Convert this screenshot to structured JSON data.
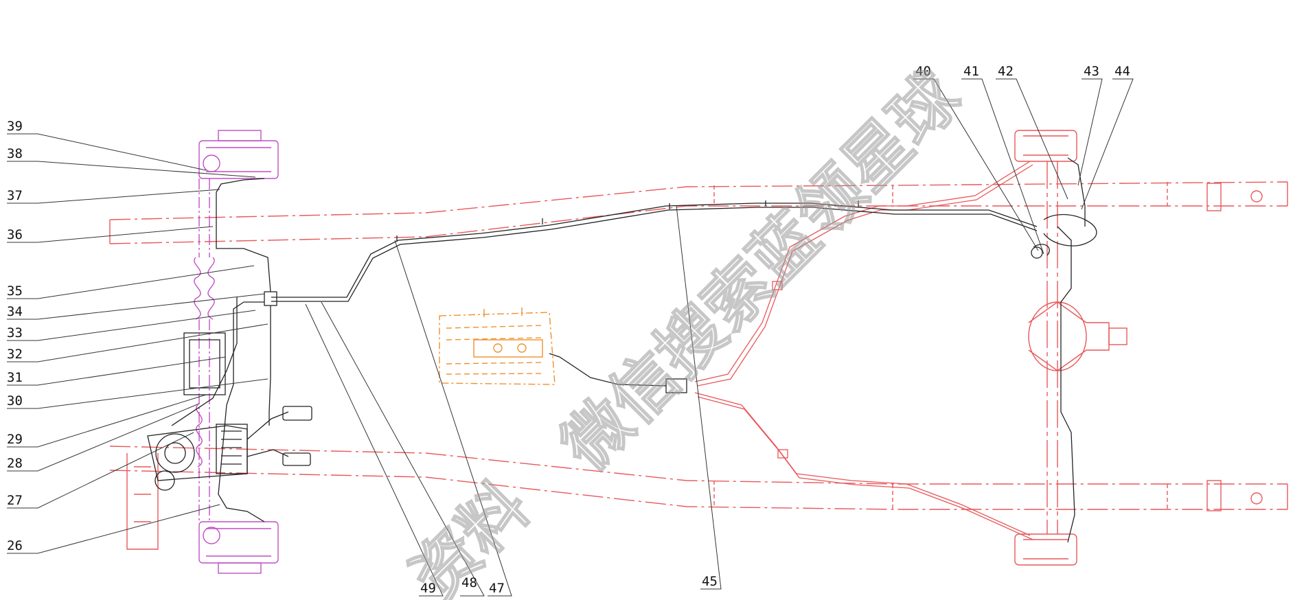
{
  "diagram": {
    "callouts_left": [
      "39",
      "38",
      "37",
      "36",
      "35",
      "34",
      "33",
      "32",
      "31",
      "30",
      "29",
      "28",
      "27",
      "26"
    ],
    "callouts_top": [
      "40",
      "41",
      "42",
      "43",
      "44"
    ],
    "callouts_bottom": [
      "49",
      "48",
      "47",
      "45"
    ]
  },
  "watermark": {
    "line_1": "微信搜索蓝领星球",
    "line_2": "资料"
  },
  "colors": {
    "frame": "#e8575a",
    "front_axle": "#c04fc4",
    "engine": "#f0902e",
    "lines": "#222222",
    "watermark": "#9a9a9a"
  }
}
